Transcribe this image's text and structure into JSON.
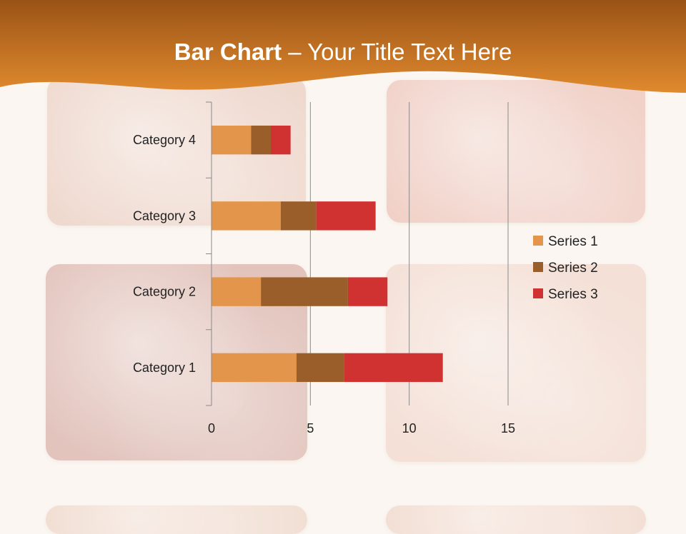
{
  "slide": {
    "title_bold": "Bar Chart",
    "title_dash": " – ",
    "title_rest": "Your Title Text Here"
  },
  "theme": {
    "header_dark": "#9a5316",
    "header_light": "#e08a2e",
    "background": "#fbf6f1"
  },
  "decor": {
    "platters": [
      {
        "name": "ham-platter",
        "tone": "#e6c2b3"
      },
      {
        "name": "prosciutto-platter",
        "tone": "#e9b3a6"
      },
      {
        "name": "salami-platter",
        "tone": "#cf9c94"
      },
      {
        "name": "mortadella-platter",
        "tone": "#efcfc2"
      },
      {
        "name": "bottom-left-platter",
        "tone": "#e9c9b8"
      },
      {
        "name": "bottom-right-platter",
        "tone": "#ecc9ba"
      }
    ]
  },
  "chart_data": {
    "type": "bar",
    "orientation": "horizontal",
    "stacked": true,
    "categories": [
      "Category 1",
      "Category 2",
      "Category 3",
      "Category 4"
    ],
    "series": [
      {
        "name": "Series 1",
        "color": "#e2954b",
        "values": [
          4.3,
          2.5,
          3.5,
          2.0
        ]
      },
      {
        "name": "Series 2",
        "color": "#9a5e2a",
        "values": [
          2.4,
          4.4,
          1.8,
          1.0
        ]
      },
      {
        "name": "Series 3",
        "color": "#d03232",
        "values": [
          5.0,
          2.0,
          3.0,
          1.0
        ]
      }
    ],
    "xlim": [
      0,
      15
    ],
    "xticks": [
      0,
      5,
      10,
      15
    ],
    "grid": true,
    "legend_position": "right"
  }
}
